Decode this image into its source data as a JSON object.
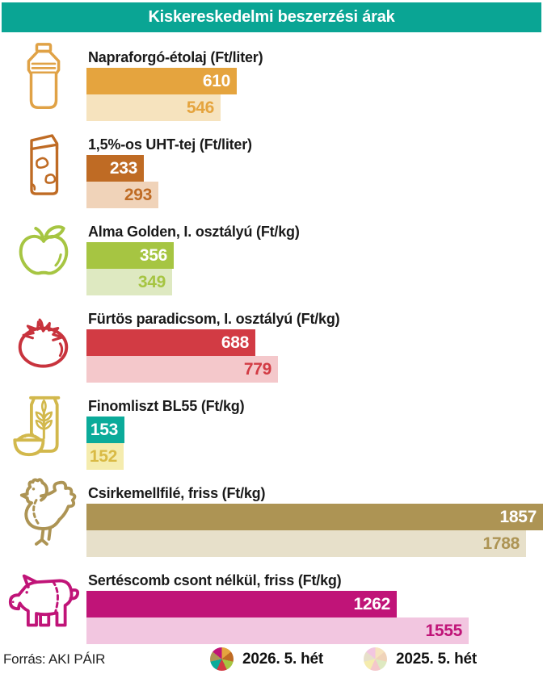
{
  "title": "Kiskereskedelmi beszerzési árak",
  "source": "Forrás: AKI PÁIR",
  "colors": {
    "header": "#0AA594",
    "label_text": "#1A1A1A",
    "source_text": "#222222",
    "value_on_dark_bar": "#FFFFFF"
  },
  "legend": {
    "items": [
      {
        "label": "2026. 5. hét",
        "icon": "pie-2026-icon"
      },
      {
        "label": "2025. 5. hét",
        "icon": "pie-2025-icon"
      }
    ]
  },
  "products": [
    {
      "label": "Napraforgó-étolaj (Ft/liter)",
      "icon": "oil-bottle-icon",
      "value_2026": 610,
      "value_2025": 546,
      "colors": {
        "bar_2026": "#E5A43E",
        "bar_2025": "#F6E3BE",
        "value_2025_text": "#E5A43E",
        "icon": "#E0A246"
      }
    },
    {
      "label": "1,5%-os UHT-tej (Ft/liter)",
      "icon": "milk-carton-icon",
      "value_2026": 233,
      "value_2025": 293,
      "colors": {
        "bar_2026": "#BF6B24",
        "bar_2025": "#F0D3B9",
        "value_2025_text": "#BF6B24",
        "icon": "#BF6B24"
      }
    },
    {
      "label": "Alma Golden, I. osztályú (Ft/kg)",
      "icon": "apple-icon",
      "value_2026": 356,
      "value_2025": 349,
      "colors": {
        "bar_2026": "#A6C542",
        "bar_2025": "#DEE9C1",
        "value_2025_text": "#A6C542",
        "icon": "#A6C542"
      }
    },
    {
      "label": "Fürtös paradicsom, I. osztályú (Ft/kg)",
      "icon": "tomato-icon",
      "value_2026": 688,
      "value_2025": 779,
      "colors": {
        "bar_2026": "#D23B44",
        "bar_2025": "#F4C8CB",
        "value_2025_text": "#D23B44",
        "icon": "#C8333D"
      }
    },
    {
      "label": "Finomliszt BL55 (Ft/kg)",
      "icon": "flour-sack-icon",
      "value_2026": 153,
      "value_2025": 152,
      "colors": {
        "bar_2026": "#0BAB9A",
        "bar_2025": "#F5ECAE",
        "value_2025_text": "#D9BA45",
        "icon": "#D2B84C"
      }
    },
    {
      "label": "Csirkemellfilé, friss (Ft/kg)",
      "icon": "chicken-icon",
      "value_2026": 1857,
      "value_2025": 1788,
      "colors": {
        "bar_2026": "#AD9454",
        "bar_2025": "#E7E0CA",
        "value_2025_text": "#AD9454",
        "icon": "#AD9454"
      }
    },
    {
      "label": "Sertéscomb csont nélkül, friss (Ft/kg)",
      "icon": "pig-icon",
      "value_2026": 1262,
      "value_2025": 1555,
      "colors": {
        "bar_2026": "#C01478",
        "bar_2025": "#F2C6E0",
        "value_2025_text": "#C01478",
        "icon": "#C01478"
      }
    }
  ],
  "chart_data": {
    "type": "bar",
    "orientation": "horizontal",
    "title": "Kiskereskedelmi beszerzési árak",
    "categories": [
      "Napraforgó-étolaj (Ft/liter)",
      "1,5%-os UHT-tej (Ft/liter)",
      "Alma Golden, I. osztályú (Ft/kg)",
      "Fürtös paradicsom, I. osztályú (Ft/kg)",
      "Finomliszt BL55 (Ft/kg)",
      "Csirkemellfilé, friss (Ft/kg)",
      "Sertéscomb csont nélkül, friss (Ft/kg)"
    ],
    "series": [
      {
        "name": "2026. 5. hét",
        "values": [
          610,
          233,
          356,
          688,
          153,
          1857,
          1262
        ]
      },
      {
        "name": "2025. 5. hét",
        "values": [
          546,
          293,
          349,
          779,
          152,
          1788,
          1555
        ]
      }
    ],
    "value_labels": true,
    "axes": "none",
    "legend_position": "bottom",
    "source": "AKI PÁIR",
    "xlim": [
      0,
      1857
    ]
  }
}
